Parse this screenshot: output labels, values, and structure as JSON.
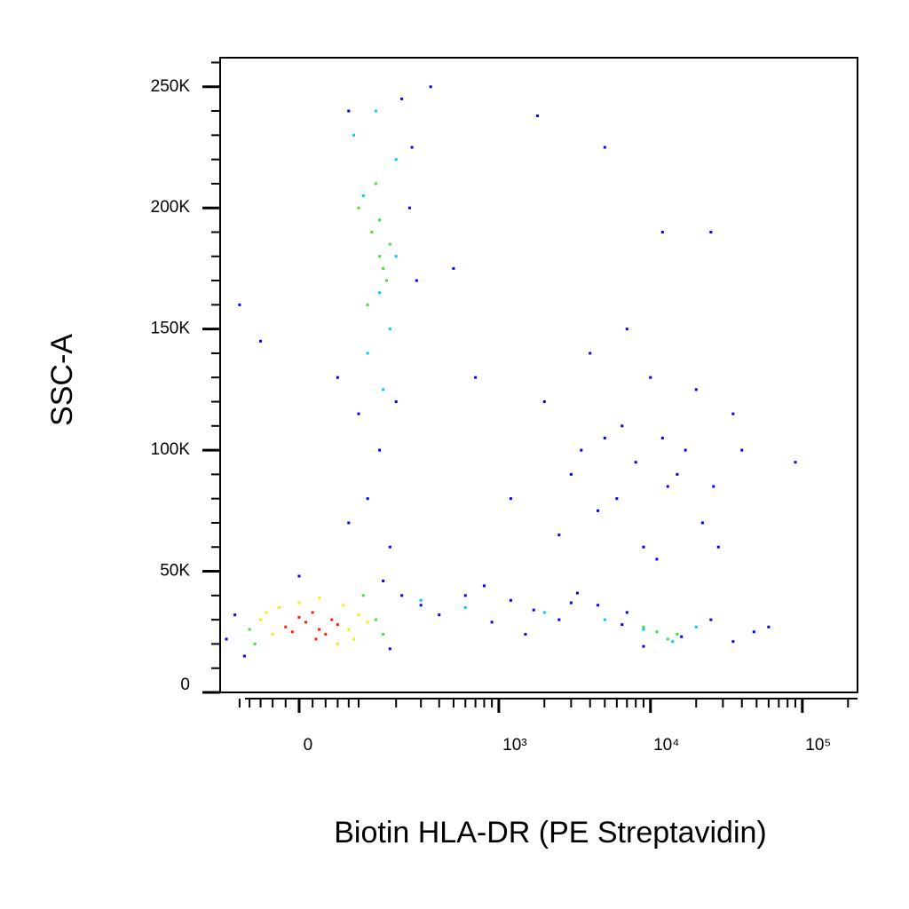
{
  "chart_data": {
    "type": "scatter",
    "xlabel": "Biotin HLA-DR (PE Streptavidin)",
    "ylabel": "SSC-A",
    "xscale": "biexponential",
    "xlim": [
      -146,
      231000
    ],
    "xticks": [
      0,
      {
        "value": 1000,
        "label": "10³"
      },
      {
        "value": 10000,
        "label": "10⁴"
      },
      {
        "value": 100000,
        "label": "10⁵"
      }
    ],
    "xminorticks": [
      -100,
      -80,
      -60,
      -40,
      -20,
      20,
      40,
      60,
      80,
      100,
      200,
      300,
      400,
      500,
      600,
      700,
      800,
      900,
      2000,
      3000,
      4000,
      5000,
      6000,
      7000,
      8000,
      9000,
      20000,
      30000,
      40000,
      50000,
      60000,
      70000,
      80000,
      90000,
      200000
    ],
    "ylim": [
      0,
      262000
    ],
    "yticks": [
      0,
      {
        "value": 50000,
        "label": "50K"
      },
      {
        "value": 100000,
        "label": "100K"
      },
      {
        "value": 150000,
        "label": "150K"
      },
      {
        "value": 200000,
        "label": "200K"
      },
      {
        "value": 250000,
        "label": "250K"
      }
    ],
    "yminorticks": [
      10000,
      20000,
      30000,
      40000,
      60000,
      70000,
      80000,
      90000,
      110000,
      120000,
      130000,
      140000,
      160000,
      170000,
      180000,
      190000,
      210000,
      220000,
      230000,
      240000,
      260000
    ],
    "series": [
      {
        "color": "#0000ff",
        "x": [
          -100,
          60,
          80,
          250,
          280,
          -60,
          220,
          200,
          100,
          260,
          -130,
          -110,
          180,
          220,
          -90,
          160,
          0,
          300,
          400,
          600,
          900,
          1200,
          1700,
          2500,
          3300,
          4500,
          6500,
          9000,
          16000,
          25000,
          35000,
          48000,
          60000,
          800,
          1500,
          3000,
          7000,
          2000,
          3000,
          4000,
          5000,
          6500,
          8000,
          10000,
          13000,
          17000,
          22000,
          28000,
          35000,
          2500,
          4500,
          7000,
          11000,
          15000,
          20000,
          3500,
          6000,
          9000,
          12000,
          26000,
          40000,
          1200,
          700,
          90000,
          150,
          120,
          180,
          80,
          1800,
          5000,
          12000,
          25000,
          500,
          350
        ],
        "values": [
          160000,
          130000,
          240000,
          200000,
          170000,
          145000,
          245000,
          120000,
          115000,
          225000,
          22000,
          32000,
          18000,
          40000,
          15000,
          46000,
          48000,
          36000,
          32000,
          40000,
          29000,
          38000,
          34000,
          30000,
          41000,
          36000,
          28000,
          19000,
          23000,
          30000,
          21000,
          25000,
          27000,
          44000,
          24000,
          37000,
          33000,
          120000,
          90000,
          140000,
          105000,
          110000,
          95000,
          130000,
          85000,
          100000,
          70000,
          60000,
          115000,
          65000,
          75000,
          150000,
          55000,
          90000,
          125000,
          100000,
          80000,
          60000,
          105000,
          85000,
          100000,
          80000,
          130000,
          95000,
          100000,
          80000,
          60000,
          70000,
          238000,
          225000,
          190000,
          190000,
          175000,
          250000
        ]
      },
      {
        "color": "#00c8ff",
        "x": [
          200,
          180,
          120,
          90,
          150,
          110,
          160,
          200,
          140,
          300,
          600,
          2000,
          5000,
          9000,
          20000,
          14000
        ],
        "values": [
          220000,
          150000,
          140000,
          230000,
          165000,
          205000,
          125000,
          180000,
          240000,
          38000,
          35000,
          33000,
          30000,
          26000,
          27000,
          21000
        ]
      },
      {
        "color": "#40e040",
        "x": [
          -80,
          140,
          160,
          -70,
          110,
          150,
          130,
          170,
          100,
          140,
          120,
          180,
          160,
          150,
          11000,
          13000,
          9000,
          15000
        ],
        "values": [
          26000,
          30000,
          24000,
          20000,
          40000,
          180000,
          190000,
          170000,
          200000,
          210000,
          160000,
          185000,
          175000,
          195000,
          25000,
          22000,
          27000,
          24000
        ]
      },
      {
        "color": "#f0f000",
        "x": [
          -60,
          -40,
          80,
          100,
          70,
          -30,
          90,
          0,
          120,
          60,
          -50,
          30
        ],
        "values": [
          30000,
          24000,
          26000,
          32000,
          36000,
          35000,
          22000,
          37000,
          29000,
          20000,
          33000,
          39000
        ]
      },
      {
        "color": "#ff2000",
        "x": [
          -20,
          10,
          30,
          50,
          0,
          40,
          -10,
          20,
          60,
          25
        ],
        "values": [
          27000,
          29000,
          26000,
          30000,
          31000,
          24000,
          25000,
          33000,
          28000,
          22000
        ]
      }
    ]
  }
}
